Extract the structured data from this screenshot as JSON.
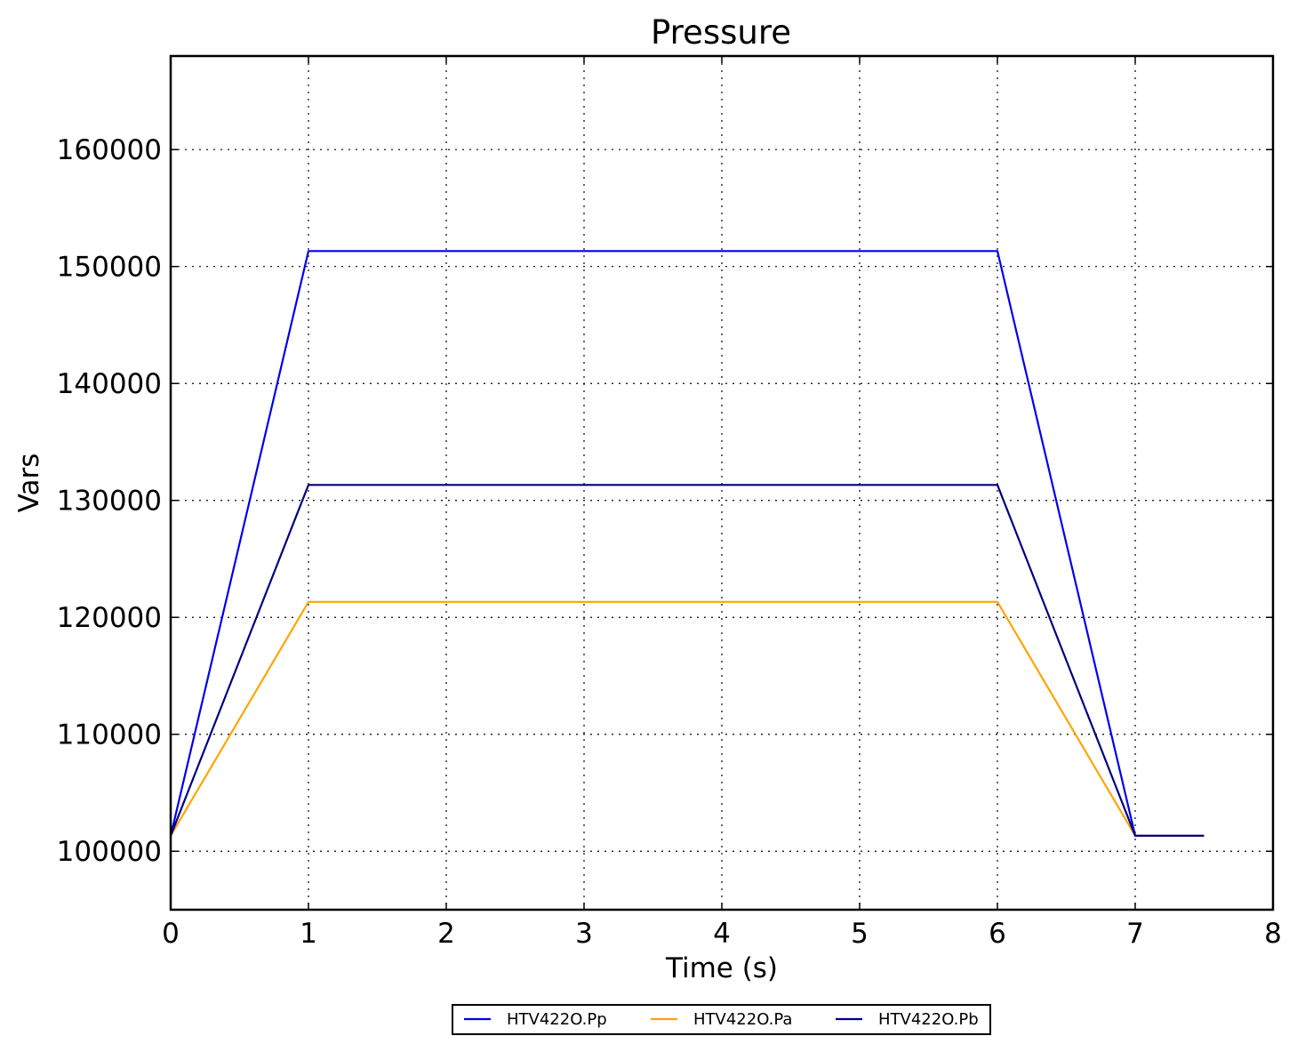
{
  "chart_data": {
    "type": "line",
    "title": "Pressure",
    "xlabel": "Time (s)",
    "ylabel": "Vars",
    "xlim": [
      0,
      8
    ],
    "ylim": [
      95000,
      168000
    ],
    "xticks": [
      0,
      1,
      2,
      3,
      4,
      5,
      6,
      7,
      8
    ],
    "yticks": [
      100000,
      110000,
      120000,
      130000,
      140000,
      150000,
      160000
    ],
    "grid": true,
    "legend": {
      "placement": "bottom-center-outside",
      "columns": 3
    },
    "series": [
      {
        "name": "HTV422O.Pp",
        "color": "#0000ee",
        "x": [
          0,
          1,
          6,
          7,
          7.5
        ],
        "y": [
          101325,
          151325,
          151325,
          101325,
          101325
        ]
      },
      {
        "name": "HTV422O.Pa",
        "color": "#ffa500",
        "x": [
          0,
          1,
          6,
          7,
          7.5
        ],
        "y": [
          101325,
          121325,
          121325,
          101325,
          101325
        ]
      },
      {
        "name": "HTV422O.Pb",
        "color": "#000080",
        "x": [
          0,
          1,
          6,
          7,
          7.5
        ],
        "y": [
          101325,
          131325,
          131325,
          101325,
          101325
        ]
      }
    ]
  }
}
